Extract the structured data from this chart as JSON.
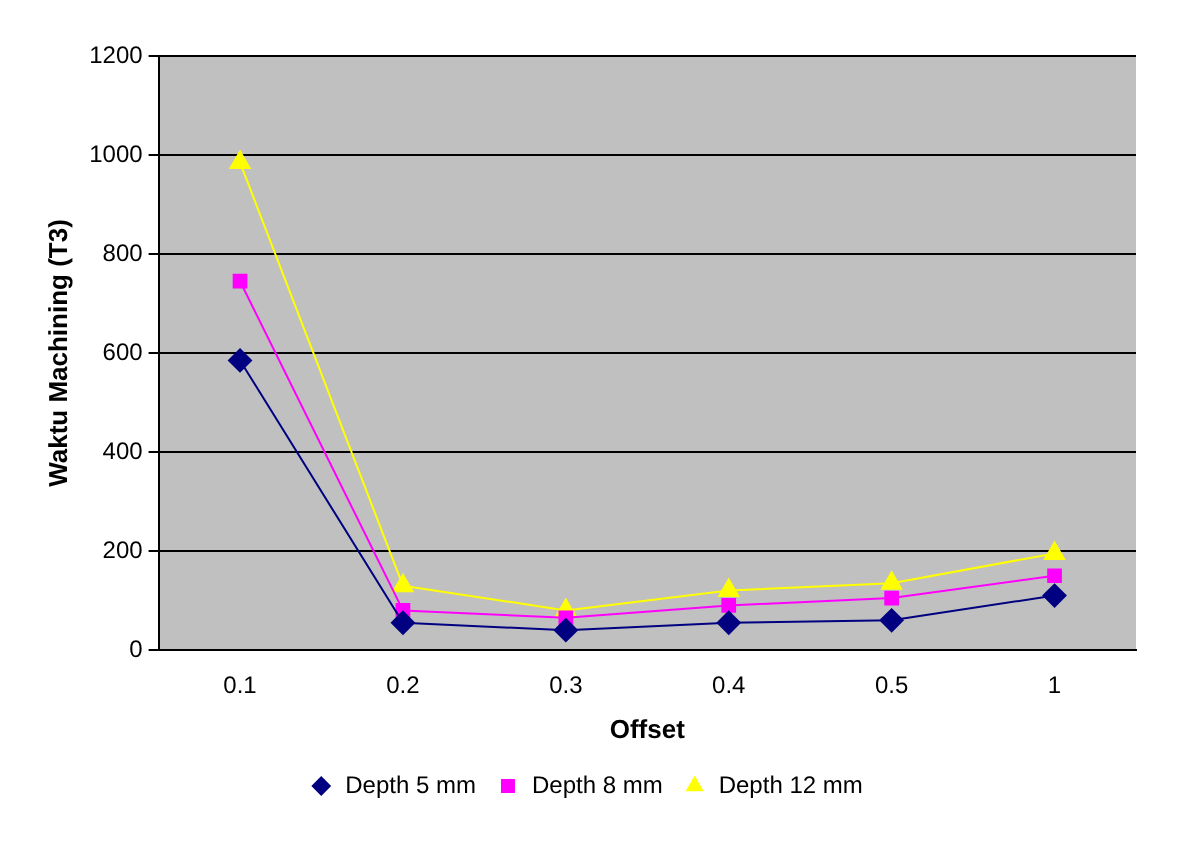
{
  "chart_data": {
    "type": "line",
    "xlabel": "Offset",
    "ylabel": "Waktu Machining (T3)",
    "categories": [
      "0.1",
      "0.2",
      "0.3",
      "0.4",
      "0.5",
      "1"
    ],
    "series": [
      {
        "name": "Depth 5 mm",
        "color": "#000080",
        "marker": "diamond",
        "values": [
          585,
          55,
          40,
          55,
          60,
          110
        ]
      },
      {
        "name": "Depth 8 mm",
        "color": "#ff00ff",
        "marker": "square",
        "values": [
          745,
          80,
          65,
          90,
          105,
          150
        ]
      },
      {
        "name": "Depth 12 mm",
        "color": "#ffff00",
        "marker": "triangle",
        "values": [
          985,
          130,
          80,
          120,
          135,
          195
        ]
      }
    ],
    "ylim": [
      0,
      1200
    ],
    "yticks": [
      0,
      200,
      400,
      600,
      800,
      1000,
      1200
    ],
    "grid": "y",
    "legend": "bottom"
  }
}
